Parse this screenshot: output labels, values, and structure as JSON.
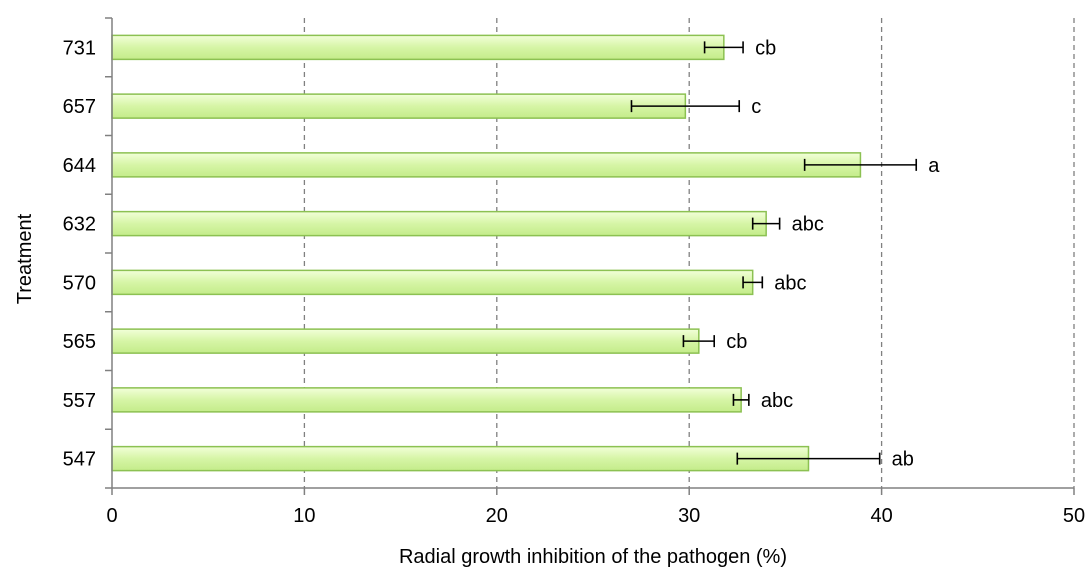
{
  "chart_data": {
    "type": "bar",
    "orientation": "horizontal",
    "title": "",
    "xlabel": "Radial growth inhibition of the pathogen (%)",
    "ylabel": "Treatment",
    "xlim": [
      0,
      50
    ],
    "xticks": [
      0,
      10,
      20,
      30,
      40,
      50
    ],
    "xtick_labels": [
      "0",
      "10",
      "20",
      "30",
      "40",
      "50"
    ],
    "grid": "vertical dashed",
    "legend": "none",
    "categories": [
      "547",
      "557",
      "565",
      "570",
      "632",
      "644",
      "657",
      "731"
    ],
    "values": [
      36.2,
      32.7,
      30.5,
      33.3,
      34.0,
      38.9,
      29.8,
      31.8
    ],
    "errors": [
      3.7,
      0.4,
      0.8,
      0.5,
      0.7,
      2.9,
      2.8,
      1.0
    ],
    "significance_labels": [
      "ab",
      "abc",
      "cb",
      "abc",
      "abc",
      "a",
      "c",
      "cb"
    ],
    "colors": {
      "bar_fill_top": "#f2ffd9",
      "bar_fill_mid": "#d6f5a6",
      "bar_fill_bottom": "#c4ec8a",
      "bar_stroke": "#8cc152",
      "grid": "#808080",
      "axis": "#808080",
      "error_bar": "#000000"
    }
  }
}
